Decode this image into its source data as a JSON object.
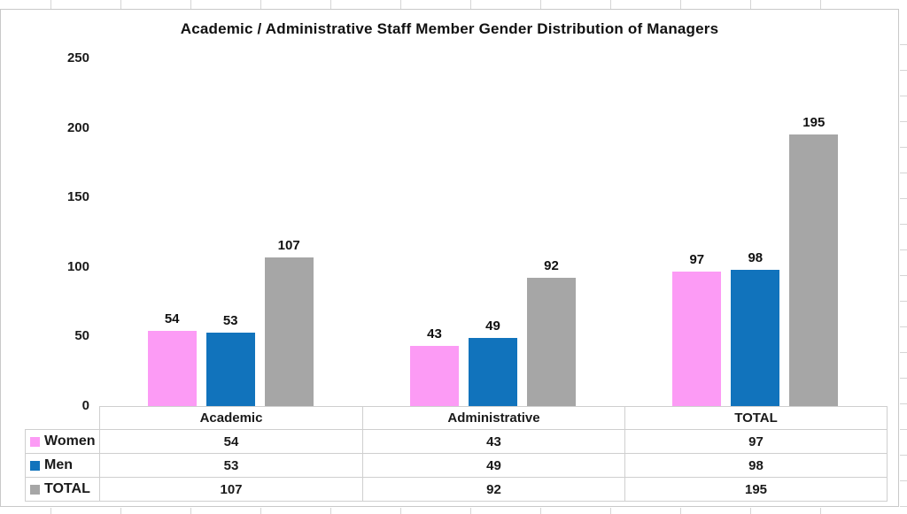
{
  "colors": {
    "women": "#FC9BF5",
    "men": "#1173BC",
    "total": "#A6A6A6",
    "text": "#1A1A1A",
    "table_border": "#CFCFCF",
    "chart_border": "#C9C9C9",
    "worksheet_gridline": "#D5D5D5"
  },
  "chart_data": {
    "type": "bar",
    "title": "Academic / Administrative Staff Member Gender Distribution of Managers",
    "categories": [
      "Academic",
      "Administrative",
      "TOTAL"
    ],
    "series": [
      {
        "name": "Women",
        "color_key": "women",
        "values": [
          54,
          43,
          97
        ]
      },
      {
        "name": "Men",
        "color_key": "men",
        "values": [
          53,
          49,
          98
        ]
      },
      {
        "name": "TOTAL",
        "color_key": "total",
        "values": [
          107,
          92,
          195
        ]
      }
    ],
    "xlabel": "",
    "ylabel": "",
    "ylim": [
      0,
      250
    ],
    "yticks": [
      0,
      50,
      100,
      150,
      200,
      250
    ],
    "grid": false,
    "data_labels": true,
    "legend_position": "table-left"
  },
  "table": {
    "column_headers": [
      "Academic",
      "Administrative",
      "TOTAL"
    ],
    "rows": [
      {
        "label": "Women",
        "color_key": "women",
        "values": [
          54,
          43,
          97
        ]
      },
      {
        "label": "Men",
        "color_key": "men",
        "values": [
          53,
          49,
          98
        ]
      },
      {
        "label": "TOTAL",
        "color_key": "total",
        "values": [
          107,
          92,
          195
        ]
      }
    ]
  }
}
